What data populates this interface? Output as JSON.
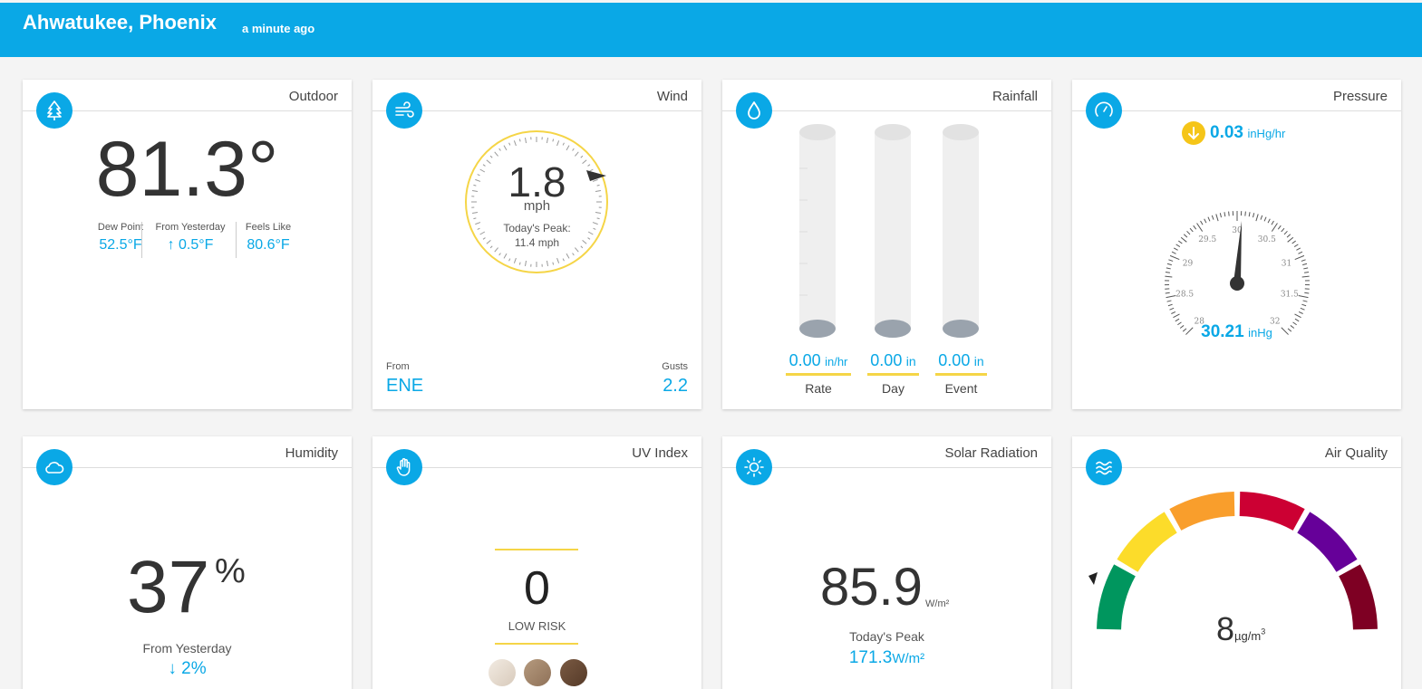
{
  "header": {
    "location": "Ahwatukee, Phoenix",
    "updated": "a minute ago"
  },
  "outdoor": {
    "title": "Outdoor",
    "temperature": "81.3°",
    "stats": [
      {
        "label": "Dew Point",
        "value": "52.5°F"
      },
      {
        "label": "From Yesterday",
        "value": "↑ 0.5°F"
      },
      {
        "label": "Feels Like",
        "value": "80.6°F"
      }
    ]
  },
  "wind": {
    "title": "Wind",
    "speed": "1.8",
    "unit": "mph",
    "peak_label": "Today's Peak:",
    "peak_value": "11.4 mph",
    "from_label": "From",
    "from_value": "ENE",
    "gusts_label": "Gusts",
    "gusts_value": "2.2"
  },
  "rainfall": {
    "title": "Rainfall",
    "columns": [
      {
        "value": "0.00",
        "unit": "in/hr",
        "label": "Rate"
      },
      {
        "value": "0.00",
        "unit": "in",
        "label": "Day"
      },
      {
        "value": "0.00",
        "unit": "in",
        "label": "Event"
      }
    ]
  },
  "pressure": {
    "title": "Pressure",
    "trend_value": "0.03",
    "trend_unit": "inHg/hr",
    "value": "30.21",
    "unit": "inHg",
    "dial_labels": [
      "28",
      "28.5",
      "29",
      "29.5",
      "30",
      "30.5",
      "31",
      "31.5",
      "32"
    ]
  },
  "humidity": {
    "title": "Humidity",
    "value": "37",
    "percent": "%",
    "from_label": "From Yesterday",
    "from_value": "↓ 2%"
  },
  "uv": {
    "title": "UV Index",
    "value": "0",
    "risk": "LOW RISK"
  },
  "solar": {
    "title": "Solar Radiation",
    "value": "85.9",
    "unit": "W/m²",
    "peak_label": "Today's Peak",
    "peak_value": "171.3",
    "peak_unit": "W/m²"
  },
  "air": {
    "title": "Air Quality",
    "value": "8",
    "unit": "µg/m",
    "unit_sup": "3"
  },
  "colors": {
    "accent": "#0aa8e6",
    "yellow": "#f5c518",
    "good": "#00965e",
    "moderate": "#fcdc2a",
    "usg": "#f99e2c",
    "unhealthy": "#cc0033",
    "very_unhealthy": "#660099",
    "hazardous": "#7e0023"
  }
}
